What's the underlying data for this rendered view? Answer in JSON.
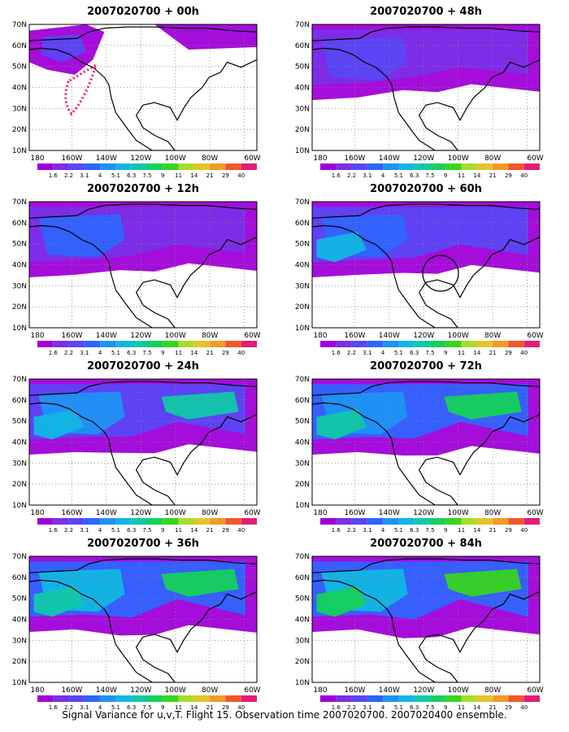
{
  "caption": "Signal Variance for u,v,T. Flight 15. Observation time 2007020700. 2007020400 ensemble.",
  "y_tick_labels": [
    "70N",
    "60N",
    "50N",
    "40N",
    "30N",
    "20N",
    "10N"
  ],
  "x_tick_labels": [
    "180",
    "160W",
    "140W",
    "120W",
    "100W",
    "80W",
    "60W"
  ],
  "colorbar": {
    "labels": [
      "1.6",
      "2.2",
      "3.1",
      "4",
      "5.1",
      "6.3",
      "7.5",
      "9",
      "11",
      "14",
      "21",
      "29",
      "40"
    ],
    "colors": [
      "#a000d8",
      "#7a2fe8",
      "#5a46f4",
      "#2f64ff",
      "#1e92f6",
      "#12b6e4",
      "#10c8a8",
      "#14d25a",
      "#38d420",
      "#a8dc28",
      "#e4c428",
      "#f09a28",
      "#f0582c",
      "#e41c78"
    ]
  },
  "land_color": "#ffffff",
  "grid_style": "dotted",
  "panels": [
    {
      "id": "p00",
      "title": "2007020700 + 00h",
      "lead_hours": 0
    },
    {
      "id": "p48",
      "title": "2007020700 + 48h",
      "lead_hours": 48
    },
    {
      "id": "p12",
      "title": "2007020700 + 12h",
      "lead_hours": 12
    },
    {
      "id": "p60",
      "title": "2007020700 + 60h",
      "lead_hours": 60
    },
    {
      "id": "p24",
      "title": "2007020700 + 24h",
      "lead_hours": 24
    },
    {
      "id": "p72",
      "title": "2007020700 + 72h",
      "lead_hours": 72
    },
    {
      "id": "p36",
      "title": "2007020700 + 36h",
      "lead_hours": 36
    },
    {
      "id": "p84",
      "title": "2007020700 + 84h",
      "lead_hours": 84
    }
  ],
  "annotations": {
    "flight_track_panel": "p00",
    "flight_track_color": "#ff1060",
    "circle_panel": "p60"
  }
}
